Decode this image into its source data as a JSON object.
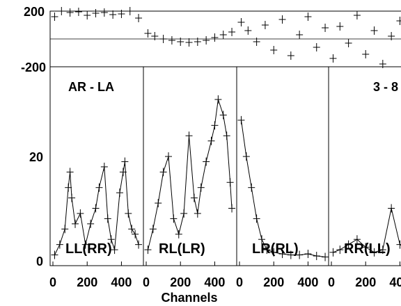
{
  "chart_data": {
    "type": "scatter",
    "baseline": "AR - LA",
    "title_right": "3 - 8",
    "xlabel": "Channels",
    "x_tick_labels": [
      "0",
      "200",
      "400"
    ],
    "x_tick_values": [
      0,
      200,
      400
    ],
    "xlim": [
      0,
      512
    ],
    "phase_panel": {
      "ylabel": "",
      "ylim": [
        -200,
        200
      ],
      "y_tick_labels": [
        "200",
        "-200"
      ],
      "y_tick_values": [
        200,
        -200
      ]
    },
    "amp_panel": {
      "ylabel": "",
      "ylim": [
        0,
        35
      ],
      "y_tick_labels": [
        "20",
        "0"
      ],
      "y_tick_values": [
        20,
        0
      ]
    },
    "marker": "+",
    "panels": [
      {
        "polarization": "LL(RR)",
        "amplitude": {
          "channels": [
            10,
            40,
            70,
            90,
            100,
            110,
            130,
            160,
            190,
            220,
            250,
            270,
            300,
            320,
            340,
            360,
            390,
            410,
            420,
            440,
            460,
            480,
            500
          ],
          "values": [
            1,
            3,
            6,
            14,
            17,
            12,
            7,
            9,
            3,
            7,
            10,
            14,
            18,
            8,
            4,
            2,
            13,
            17,
            19,
            9,
            6,
            5,
            3
          ]
        },
        "phase": {
          "channels": [
            10,
            50,
            100,
            150,
            200,
            250,
            300,
            350,
            400,
            450,
            500
          ],
          "values": [
            160,
            200,
            190,
            195,
            170,
            185,
            190,
            175,
            180,
            200,
            150
          ]
        }
      },
      {
        "polarization": "RL(LR)",
        "amplitude": {
          "channels": [
            10,
            40,
            70,
            100,
            130,
            160,
            190,
            220,
            250,
            280,
            300,
            320,
            350,
            380,
            400,
            420,
            450,
            470,
            490,
            500
          ],
          "values": [
            2,
            6,
            11,
            17,
            20,
            8,
            5,
            9,
            24,
            12,
            9,
            14,
            19,
            23,
            26,
            31,
            28,
            24,
            15,
            10
          ]
        },
        "phase": {
          "channels": [
            10,
            50,
            100,
            150,
            200,
            250,
            300,
            350,
            400,
            450,
            500
          ],
          "values": [
            40,
            20,
            0,
            -10,
            -20,
            -25,
            -20,
            -10,
            10,
            30,
            50
          ]
        }
      },
      {
        "polarization": "LR(RL)",
        "amplitude": {
          "channels": [
            10,
            40,
            70,
            100,
            130,
            160,
            200,
            250,
            300,
            350,
            400,
            450,
            500
          ],
          "values": [
            27,
            20,
            14,
            8,
            4,
            2,
            1.5,
            1.2,
            1.0,
            1.0,
            1.2,
            0.8,
            0.6
          ]
        },
        "phase": {
          "channels": [
            10,
            50,
            100,
            150,
            200,
            250,
            300,
            350,
            400,
            450,
            500
          ],
          "values": [
            120,
            60,
            -20,
            100,
            -80,
            140,
            -120,
            30,
            160,
            -60,
            80
          ]
        }
      },
      {
        "polarization": "RR(LL)",
        "amplitude": {
          "channels": [
            10,
            50,
            100,
            150,
            200,
            250,
            300,
            350,
            400,
            450,
            500
          ],
          "values": [
            1.5,
            2,
            3,
            4,
            2.5,
            1.5,
            2,
            10,
            3,
            2,
            2
          ]
        },
        "phase": {
          "channels": [
            10,
            50,
            100,
            150,
            200,
            250,
            300,
            350,
            400,
            450,
            500
          ],
          "values": [
            -140,
            90,
            -30,
            170,
            -110,
            60,
            -180,
            20,
            130,
            -70,
            100
          ]
        }
      }
    ]
  }
}
